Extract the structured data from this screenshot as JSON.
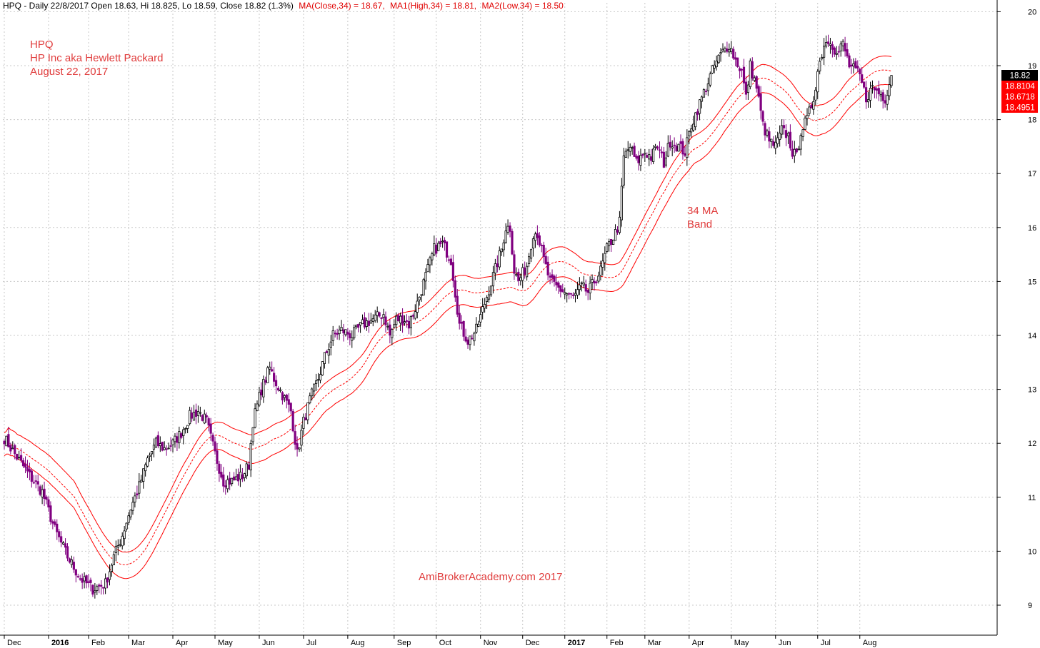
{
  "header": {
    "ticker_line": "HPQ - Daily 22/8/2017 Open 18.63, Hi 18.825, Lo 18.59, Close 18.82 (1.3%)",
    "ma_close": "MA(Close,34) = 18.67,",
    "ma_high": "MA1(High,34) = 18.81,",
    "ma_low": "MA2(Low,34) = 18.50"
  },
  "annotations": {
    "title_1": "HPQ",
    "title_2": "HP Inc aka Hewlett Packard",
    "title_3": "August 22, 2017",
    "band_1": "34 MA",
    "band_2": "Band",
    "watermark": "AmiBrokerAcademy.com  2017"
  },
  "price_tags": [
    {
      "label": "18.82",
      "color": "#000000"
    },
    {
      "label": "18.8104",
      "color": "#ff0000"
    },
    {
      "label": "18.6718",
      "color": "#ff0000"
    },
    {
      "label": "18.4951",
      "color": "#ff0000"
    }
  ],
  "colors": {
    "up_candle": "#000000",
    "down_candle": "#800080",
    "band": "#ff0000",
    "grid": "#c8c8c8",
    "annotation": "#e03c3c"
  },
  "chart_data": {
    "type": "candlestick",
    "grid": true,
    "ylim": [
      8.5,
      20.2
    ],
    "y_ticks": [
      9,
      10,
      11,
      12,
      13,
      14,
      15,
      16,
      17,
      18,
      19,
      20
    ],
    "x_ticks": [
      {
        "label": "Dec",
        "i": 0
      },
      {
        "label": "2016",
        "i": 21,
        "bold": true
      },
      {
        "label": "Feb",
        "i": 40
      },
      {
        "label": "Mar",
        "i": 59
      },
      {
        "label": "Apr",
        "i": 80
      },
      {
        "label": "May",
        "i": 100
      },
      {
        "label": "Jun",
        "i": 121
      },
      {
        "label": "Jul",
        "i": 142
      },
      {
        "label": "Aug",
        "i": 163
      },
      {
        "label": "Sep",
        "i": 185
      },
      {
        "label": "Oct",
        "i": 205
      },
      {
        "label": "Nov",
        "i": 226
      },
      {
        "label": "Dec",
        "i": 246
      },
      {
        "label": "2017",
        "i": 266,
        "bold": true
      },
      {
        "label": "Feb",
        "i": 286
      },
      {
        "label": "Mar",
        "i": 304
      },
      {
        "label": "Apr",
        "i": 325
      },
      {
        "label": "May",
        "i": 345
      },
      {
        "label": "Jun",
        "i": 366
      },
      {
        "label": "Jul",
        "i": 386
      },
      {
        "label": "Aug",
        "i": 406
      }
    ],
    "n_bars": 422,
    "close_anchors": [
      [
        0,
        12.1
      ],
      [
        5,
        11.8
      ],
      [
        12,
        11.4
      ],
      [
        18,
        11.1
      ],
      [
        24,
        10.4
      ],
      [
        30,
        9.9
      ],
      [
        36,
        9.5
      ],
      [
        42,
        9.3
      ],
      [
        48,
        9.4
      ],
      [
        52,
        9.9
      ],
      [
        56,
        10.3
      ],
      [
        60,
        10.8
      ],
      [
        64,
        11.2
      ],
      [
        68,
        11.7
      ],
      [
        72,
        12.0
      ],
      [
        76,
        11.9
      ],
      [
        80,
        12.0
      ],
      [
        84,
        12.2
      ],
      [
        88,
        12.5
      ],
      [
        92,
        12.6
      ],
      [
        96,
        12.4
      ],
      [
        100,
        11.8
      ],
      [
        104,
        11.3
      ],
      [
        108,
        11.3
      ],
      [
        113,
        11.4
      ],
      [
        116,
        11.6
      ],
      [
        118,
        12.4
      ],
      [
        122,
        13.0
      ],
      [
        126,
        13.4
      ],
      [
        128,
        13.2
      ],
      [
        132,
        12.9
      ],
      [
        136,
        12.6
      ],
      [
        139,
        11.8
      ],
      [
        142,
        12.4
      ],
      [
        145,
        12.8
      ],
      [
        149,
        13.2
      ],
      [
        152,
        13.6
      ],
      [
        156,
        14.0
      ],
      [
        160,
        14.1
      ],
      [
        165,
        14.0
      ],
      [
        170,
        14.2
      ],
      [
        175,
        14.3
      ],
      [
        180,
        14.4
      ],
      [
        183,
        14.0
      ],
      [
        186,
        14.3
      ],
      [
        190,
        14.3
      ],
      [
        192,
        14.2
      ],
      [
        196,
        14.6
      ],
      [
        200,
        15.1
      ],
      [
        204,
        15.6
      ],
      [
        208,
        15.7
      ],
      [
        212,
        15.4
      ],
      [
        214,
        14.8
      ],
      [
        216,
        14.2
      ],
      [
        220,
        13.9
      ],
      [
        224,
        14.1
      ],
      [
        228,
        14.6
      ],
      [
        232,
        15.1
      ],
      [
        236,
        15.6
      ],
      [
        238,
        16.0
      ],
      [
        240,
        16.0
      ],
      [
        242,
        15.2
      ],
      [
        244,
        15.0
      ],
      [
        248,
        15.3
      ],
      [
        251,
        15.9
      ],
      [
        253,
        15.9
      ],
      [
        256,
        15.4
      ],
      [
        259,
        15.0
      ],
      [
        262,
        14.9
      ],
      [
        266,
        14.8
      ],
      [
        270,
        14.7
      ],
      [
        274,
        14.9
      ],
      [
        277,
        14.8
      ],
      [
        280,
        15.0
      ],
      [
        283,
        15.2
      ],
      [
        286,
        15.6
      ],
      [
        290,
        15.9
      ],
      [
        292,
        16.1
      ],
      [
        294,
        17.3
      ],
      [
        297,
        17.5
      ],
      [
        300,
        17.2
      ],
      [
        304,
        17.4
      ],
      [
        307,
        17.3
      ],
      [
        310,
        17.5
      ],
      [
        313,
        17.2
      ],
      [
        316,
        17.6
      ],
      [
        320,
        17.5
      ],
      [
        323,
        17.4
      ],
      [
        326,
        17.9
      ],
      [
        329,
        18.2
      ],
      [
        333,
        18.6
      ],
      [
        337,
        19.0
      ],
      [
        340,
        19.2
      ],
      [
        344,
        19.4
      ],
      [
        347,
        19.1
      ],
      [
        350,
        18.9
      ],
      [
        352,
        18.4
      ],
      [
        354,
        19.0
      ],
      [
        357,
        18.6
      ],
      [
        360,
        17.9
      ],
      [
        363,
        17.6
      ],
      [
        366,
        17.5
      ],
      [
        369,
        17.8
      ],
      [
        372,
        17.7
      ],
      [
        374,
        17.4
      ],
      [
        376,
        17.3
      ],
      [
        378,
        17.8
      ],
      [
        381,
        18.0
      ],
      [
        384,
        18.4
      ],
      [
        386,
        18.9
      ],
      [
        389,
        19.4
      ],
      [
        392,
        19.5
      ],
      [
        395,
        19.2
      ],
      [
        398,
        19.4
      ],
      [
        401,
        19.0
      ],
      [
        404,
        18.9
      ],
      [
        406,
        18.8
      ],
      [
        409,
        18.4
      ],
      [
        412,
        18.6
      ],
      [
        415,
        18.5
      ],
      [
        418,
        18.4
      ],
      [
        421,
        18.82
      ]
    ]
  }
}
